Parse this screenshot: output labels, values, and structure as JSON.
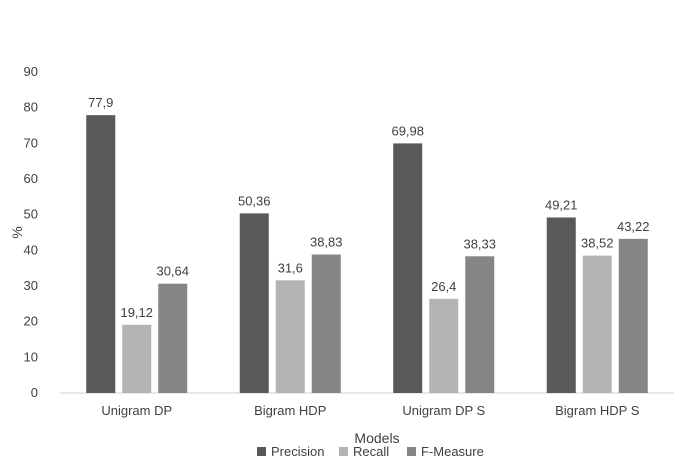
{
  "chart_data": {
    "type": "bar",
    "title": "",
    "xlabel": "Models",
    "ylabel": "%",
    "categories": [
      "Unigram DP",
      "Bigram HDP",
      "Unigram DP S",
      "Bigram HDP S"
    ],
    "ylim": [
      0,
      90
    ],
    "yticks": [
      0,
      10,
      20,
      30,
      40,
      50,
      60,
      70,
      80,
      90
    ],
    "grid": false,
    "legend_position": "bottom",
    "series": [
      {
        "name": "Precision",
        "color": "#595959",
        "values": [
          77.9,
          50.36,
          69.98,
          49.21
        ],
        "labels": [
          "77,9",
          "50,36",
          "69,98",
          "49,21"
        ]
      },
      {
        "name": "Recall",
        "color": "#b3b3b3",
        "values": [
          19.12,
          31.6,
          26.4,
          38.52
        ],
        "labels": [
          "19,12",
          "31,6",
          "26,4",
          "38,52"
        ]
      },
      {
        "name": "F-Measure",
        "color": "#858585",
        "values": [
          30.64,
          38.83,
          38.33,
          43.22
        ],
        "labels": [
          "30,64",
          "38,83",
          "38,33",
          "43,22"
        ]
      }
    ]
  }
}
